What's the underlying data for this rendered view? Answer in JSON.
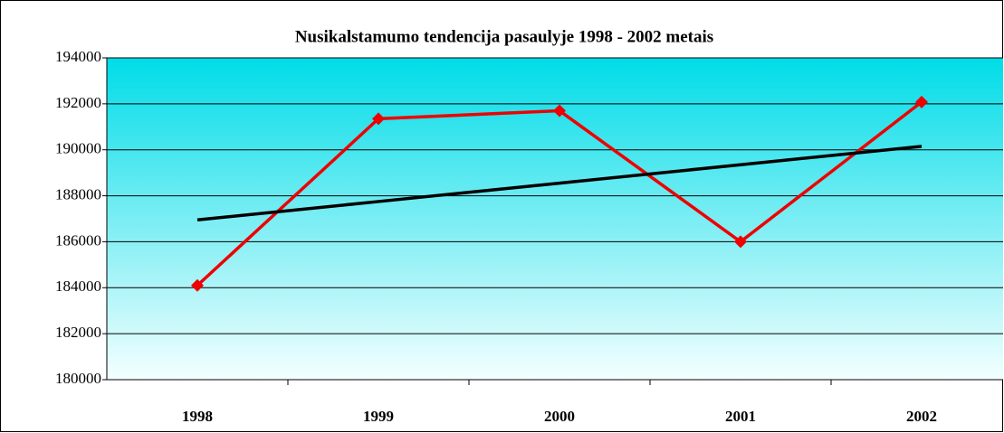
{
  "chart_data": {
    "type": "line",
    "title": "Nusikalstamumo tendencija pasaulyje 1998 - 2002 metais",
    "categories": [
      "1998",
      "1999",
      "2000",
      "2001",
      "2002"
    ],
    "series": [
      {
        "color": "#ee0000",
        "marker": "diamond",
        "values": [
          184100,
          191350,
          191700,
          186000,
          192080
        ]
      },
      {
        "color": "#000000",
        "values": [
          186950,
          187750,
          188550,
          189350,
          190150
        ]
      }
    ],
    "ylim": [
      180000,
      194000
    ],
    "yticks": [
      180000,
      182000,
      184000,
      186000,
      188000,
      190000,
      192000,
      194000
    ],
    "grid": true
  }
}
